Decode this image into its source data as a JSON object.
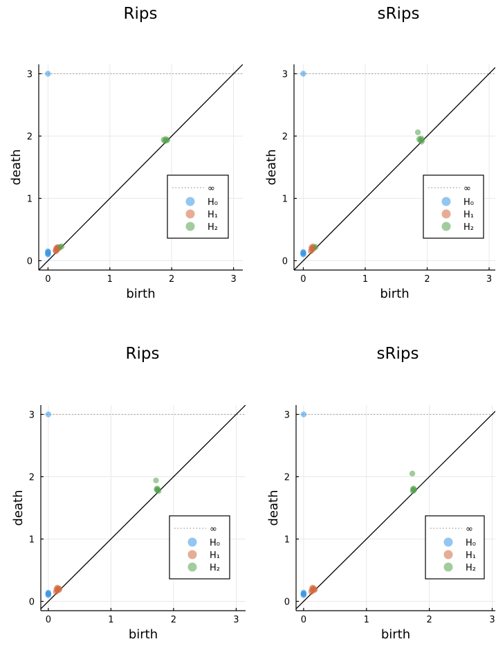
{
  "legend_labels": {
    "inf": "∞",
    "h0": "H₀",
    "h1": "H₁",
    "h2": "H₂"
  },
  "colors": {
    "h0": "#3b97e3",
    "h1": "#d2693f",
    "h2": "#56a34f",
    "diagonal": "#000000",
    "infinity_line": "#9a9a9a"
  },
  "chart_data": [
    {
      "type": "scatter",
      "title": "Rips",
      "xlabel": "birth",
      "ylabel": "death",
      "xlim": [
        -0.15,
        3.15
      ],
      "ylim": [
        -0.15,
        3.15
      ],
      "xticks": [
        0,
        1,
        2,
        3
      ],
      "yticks": [
        0,
        1,
        2,
        3
      ],
      "grid": true,
      "legend_position": "right",
      "diagonal": true,
      "infinity_value": 3,
      "series": [
        {
          "key": "h0",
          "name": "H₀",
          "points": [
            [
              0,
              3
            ],
            [
              0,
              0.1
            ],
            [
              0,
              0.12
            ],
            [
              0,
              0.14
            ],
            [
              0,
              0.15
            ],
            [
              0,
              0.11
            ],
            [
              0,
              0.13
            ]
          ]
        },
        {
          "key": "h1",
          "name": "H₁",
          "points": [
            [
              0.12,
              0.16
            ],
            [
              0.13,
              0.19
            ],
            [
              0.14,
              0.21
            ],
            [
              0.15,
              0.2
            ],
            [
              0.16,
              0.22
            ],
            [
              0.14,
              0.17
            ],
            [
              0.18,
              0.2
            ],
            [
              0.17,
              0.21
            ],
            [
              0.15,
              0.18
            ],
            [
              0.13,
              0.15
            ]
          ]
        },
        {
          "key": "h2",
          "name": "H₂",
          "points": [
            [
              0.22,
              0.23
            ],
            [
              0.2,
              0.22
            ],
            [
              1.87,
              1.94
            ],
            [
              1.9,
              1.95
            ],
            [
              1.92,
              1.93
            ],
            [
              1.89,
              1.92
            ],
            [
              1.93,
              1.94
            ]
          ]
        }
      ]
    },
    {
      "type": "scatter",
      "title": "sRips",
      "xlabel": "birth",
      "ylabel": "death",
      "xlim": [
        -0.15,
        3.1
      ],
      "ylim": [
        -0.15,
        3.15
      ],
      "xticks": [
        0,
        1,
        2,
        3
      ],
      "yticks": [
        0,
        1,
        2,
        3
      ],
      "grid": true,
      "legend_position": "right",
      "diagonal": true,
      "infinity_value": 3,
      "series": [
        {
          "key": "h0",
          "name": "H₀",
          "points": [
            [
              0,
              3
            ],
            [
              0,
              0.1
            ],
            [
              0,
              0.12
            ],
            [
              0,
              0.14
            ],
            [
              0,
              0.11
            ],
            [
              0,
              0.13
            ]
          ]
        },
        {
          "key": "h1",
          "name": "H₁",
          "points": [
            [
              0.12,
              0.15
            ],
            [
              0.13,
              0.2
            ],
            [
              0.14,
              0.22
            ],
            [
              0.15,
              0.19
            ],
            [
              0.16,
              0.23
            ],
            [
              0.17,
              0.2
            ],
            [
              0.14,
              0.17
            ],
            [
              0.18,
              0.21
            ]
          ]
        },
        {
          "key": "h2",
          "name": "H₂",
          "points": [
            [
              0.2,
              0.22
            ],
            [
              1.85,
              2.06
            ],
            [
              1.87,
              1.95
            ],
            [
              1.89,
              1.93
            ],
            [
              1.91,
              1.91
            ],
            [
              1.9,
              1.96
            ],
            [
              1.92,
              1.94
            ]
          ]
        }
      ]
    },
    {
      "type": "scatter",
      "title": "Rips",
      "xlabel": "birth",
      "ylabel": "death",
      "xlim": [
        -0.12,
        3.15
      ],
      "ylim": [
        -0.15,
        3.15
      ],
      "xticks": [
        0,
        1,
        2,
        3
      ],
      "yticks": [
        0,
        1,
        2,
        3
      ],
      "grid": true,
      "legend_position": "right",
      "diagonal": true,
      "infinity_value": 3,
      "series": [
        {
          "key": "h0",
          "name": "H₀",
          "points": [
            [
              0,
              3
            ],
            [
              0,
              0.1
            ],
            [
              0,
              0.12
            ],
            [
              0,
              0.14
            ],
            [
              0,
              0.11
            ],
            [
              0,
              0.13
            ]
          ]
        },
        {
          "key": "h1",
          "name": "H₁",
          "points": [
            [
              0.12,
              0.15
            ],
            [
              0.13,
              0.19
            ],
            [
              0.14,
              0.22
            ],
            [
              0.15,
              0.2
            ],
            [
              0.16,
              0.21
            ],
            [
              0.18,
              0.2
            ],
            [
              0.14,
              0.17
            ],
            [
              0.17,
              0.18
            ]
          ]
        },
        {
          "key": "h2",
          "name": "H₂",
          "points": [
            [
              1.72,
              1.94
            ],
            [
              1.73,
              1.8
            ],
            [
              1.74,
              1.78
            ],
            [
              1.75,
              1.79
            ],
            [
              1.76,
              1.77
            ],
            [
              1.74,
              1.81
            ]
          ]
        }
      ]
    },
    {
      "type": "scatter",
      "title": "sRips",
      "xlabel": "birth",
      "ylabel": "death",
      "xlim": [
        -0.12,
        3.05
      ],
      "ylim": [
        -0.15,
        3.15
      ],
      "xticks": [
        0,
        1,
        2,
        3
      ],
      "yticks": [
        0,
        1,
        2,
        3
      ],
      "grid": true,
      "legend_position": "right",
      "diagonal": true,
      "infinity_value": 3,
      "series": [
        {
          "key": "h0",
          "name": "H₀",
          "points": [
            [
              0,
              3
            ],
            [
              0,
              0.1
            ],
            [
              0,
              0.12
            ],
            [
              0,
              0.14
            ],
            [
              0,
              0.11
            ],
            [
              0,
              0.13
            ]
          ]
        },
        {
          "key": "h1",
          "name": "H₁",
          "points": [
            [
              0.12,
              0.15
            ],
            [
              0.13,
              0.19
            ],
            [
              0.14,
              0.22
            ],
            [
              0.15,
              0.2
            ],
            [
              0.16,
              0.21
            ],
            [
              0.18,
              0.19
            ],
            [
              0.14,
              0.17
            ],
            [
              0.17,
              0.18
            ]
          ]
        },
        {
          "key": "h2",
          "name": "H₂",
          "points": [
            [
              1.73,
              2.05
            ],
            [
              1.74,
              1.8
            ],
            [
              1.75,
              1.78
            ],
            [
              1.76,
              1.79
            ],
            [
              1.74,
              1.77
            ],
            [
              1.75,
              1.81
            ]
          ]
        }
      ]
    }
  ]
}
